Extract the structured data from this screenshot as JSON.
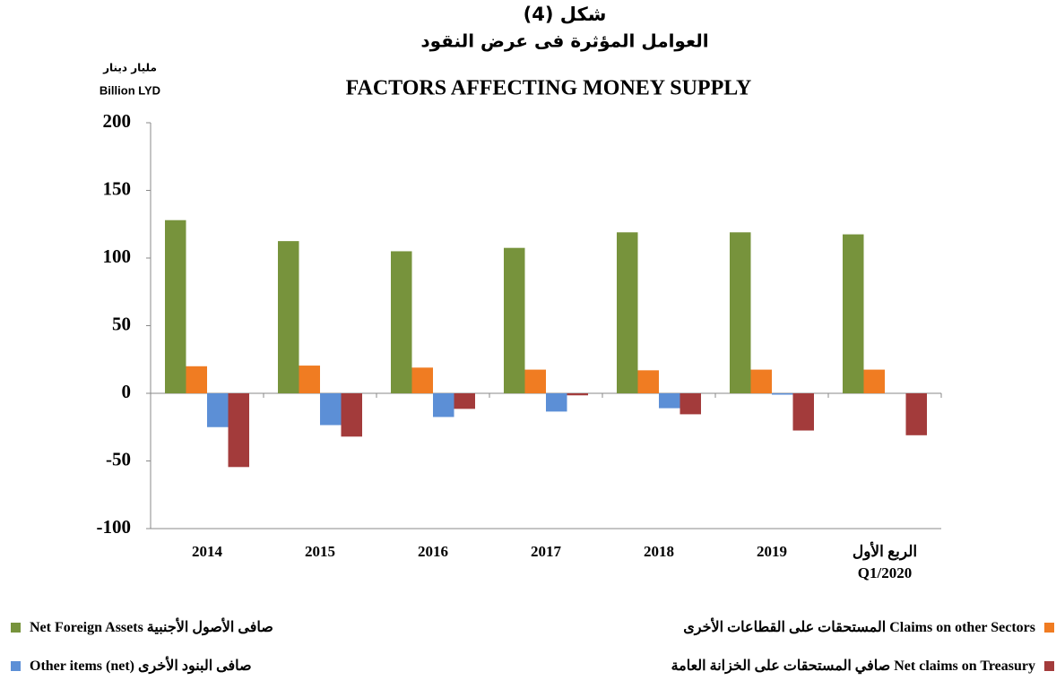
{
  "chart_data": {
    "type": "bar",
    "title": [
      "شكل (4)",
      "العوامل المؤثرة فى عرض النقود",
      "FACTORS AFFECTING MONEY SUPPLY"
    ],
    "y_axis_label": [
      "مليار دينار",
      "Billion LYD"
    ],
    "categories": [
      "2014",
      "2015",
      "2016",
      "2017",
      "2018",
      "2019",
      "الربع الأول\nQ1/2020"
    ],
    "series": [
      {
        "name": "Net Foreign Assets صافى الأصول الأجنبية",
        "color": "#77933c",
        "values": [
          128,
          112.5,
          105,
          107.5,
          119,
          119,
          117.5
        ]
      },
      {
        "name": "المستحقات على القطاعات الأخرى Claims on other Sectors",
        "color": "#f07c22",
        "values": [
          20,
          20.5,
          19,
          17.5,
          17,
          17.5,
          17.5
        ]
      },
      {
        "name": "Other items (net) صافى البنود الأخرى",
        "color": "#5c8fd6",
        "values": [
          -25,
          -23.5,
          -17.5,
          -13.5,
          -11,
          -1,
          0
        ]
      },
      {
        "name": "صافي المستحقات على الخزانة العامة Net claims on Treasury",
        "color": "#a33b3b",
        "values": [
          -54.5,
          -32,
          -11.5,
          -1.5,
          -15.5,
          -27.5,
          -31
        ]
      }
    ],
    "ylim": [
      -100,
      200
    ],
    "yticks": [
      -100,
      -50,
      0,
      50,
      100,
      150,
      200
    ]
  }
}
